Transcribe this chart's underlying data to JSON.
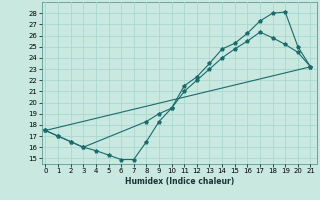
{
  "xlabel": "Humidex (Indice chaleur)",
  "bg_color": "#c8e8e0",
  "grid_color": "#a8d8d0",
  "line_color": "#1a6b6b",
  "x_ticks": [
    0,
    1,
    2,
    3,
    4,
    5,
    6,
    7,
    8,
    9,
    10,
    11,
    12,
    13,
    14,
    15,
    16,
    17,
    18,
    19,
    20,
    21
  ],
  "y_ticks": [
    15,
    16,
    17,
    18,
    19,
    20,
    21,
    22,
    23,
    24,
    25,
    26,
    27,
    28
  ],
  "xlim": [
    -0.3,
    21.5
  ],
  "ylim": [
    14.5,
    29.0
  ],
  "curve1_x": [
    0,
    1,
    2,
    3,
    4,
    5,
    6,
    7,
    8,
    9,
    10,
    11,
    12,
    13,
    14,
    15,
    16,
    17,
    18,
    19,
    20,
    21
  ],
  "curve1_y": [
    17.5,
    17.0,
    16.5,
    16.0,
    15.7,
    15.3,
    14.9,
    14.9,
    16.5,
    18.3,
    19.5,
    21.5,
    22.3,
    23.5,
    24.8,
    25.3,
    26.2,
    27.3,
    28.0,
    28.1,
    25.0,
    23.2
  ],
  "curve2_x": [
    0,
    1,
    2,
    3,
    8,
    9,
    10,
    11,
    12,
    13,
    14,
    15,
    16,
    17,
    18,
    19,
    20,
    21
  ],
  "curve2_y": [
    17.5,
    17.0,
    16.5,
    16.0,
    18.3,
    19.0,
    19.5,
    21.0,
    22.0,
    23.0,
    24.0,
    24.8,
    25.5,
    26.3,
    25.8,
    25.2,
    24.5,
    23.2
  ],
  "curve3_x": [
    0,
    21
  ],
  "curve3_y": [
    17.5,
    23.2
  ]
}
